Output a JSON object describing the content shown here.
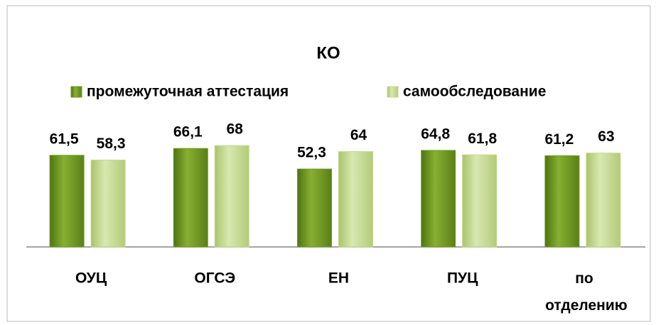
{
  "chart_data": {
    "type": "bar",
    "title": "КО",
    "categories": [
      "ОУЦ",
      "ОГСЭ",
      "ЕН",
      "ПУЦ",
      "по отделению"
    ],
    "series": [
      {
        "name": "промежуточная аттестация",
        "color": "#6f9a20",
        "values": [
          61.5,
          66.1,
          52.3,
          64.8,
          61.2
        ],
        "value_labels": [
          "61,5",
          "66,1",
          "52,3",
          "64,8",
          "61,2"
        ]
      },
      {
        "name": "самообследование",
        "color": "#c3d88c",
        "values": [
          58.3,
          68,
          64,
          61.8,
          63
        ],
        "value_labels": [
          "58,3",
          "68",
          "64",
          "61,8",
          "63"
        ]
      }
    ],
    "ylim": [
      0,
      80
    ],
    "legend": "top"
  }
}
